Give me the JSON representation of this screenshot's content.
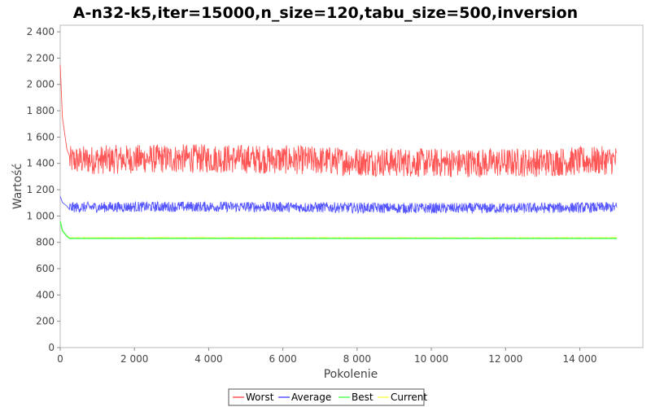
{
  "chart_data": {
    "type": "line",
    "title": "A-n32-k5,iter=15000,n_size=120,tabu_size=500,inversion",
    "xlabel": "Pokolenie",
    "ylabel": "Wartość",
    "xlim": [
      0,
      15700
    ],
    "ylim": [
      0,
      2450
    ],
    "x_ticks": [
      {
        "value": 0,
        "label": "0"
      },
      {
        "value": 2000,
        "label": "2 000"
      },
      {
        "value": 4000,
        "label": "4 000"
      },
      {
        "value": 6000,
        "label": "6 000"
      },
      {
        "value": 8000,
        "label": "8 000"
      },
      {
        "value": 10000,
        "label": "10 000"
      },
      {
        "value": 12000,
        "label": "12 000"
      },
      {
        "value": 14000,
        "label": "14 000"
      }
    ],
    "y_ticks": [
      {
        "value": 0,
        "label": "0"
      },
      {
        "value": 200,
        "label": "200"
      },
      {
        "value": 400,
        "label": "400"
      },
      {
        "value": 600,
        "label": "600"
      },
      {
        "value": 800,
        "label": "800"
      },
      {
        "value": 1000,
        "label": "1 000"
      },
      {
        "value": 1200,
        "label": "1 200"
      },
      {
        "value": 1400,
        "label": "1 400"
      },
      {
        "value": 1600,
        "label": "1 600"
      },
      {
        "value": 1800,
        "label": "1 800"
      },
      {
        "value": 2000,
        "label": "2 000"
      },
      {
        "value": 2200,
        "label": "2 200"
      },
      {
        "value": 2400,
        "label": "2 400"
      }
    ],
    "x_max": 15000,
    "series": [
      {
        "name": "Worst",
        "color": "#ff5555",
        "start": 2150,
        "mean": 1420,
        "noise": 110
      },
      {
        "name": "Average",
        "color": "#5555ff",
        "start": 1150,
        "mean": 1065,
        "noise": 40
      },
      {
        "name": "Best",
        "color": "#55ff55",
        "start": 960,
        "mean": 830,
        "noise": 0
      },
      {
        "name": "Current",
        "color": "#ffff55",
        "start": 960,
        "mean": 835,
        "noise": 4
      }
    ],
    "legend_position": "bottom-center",
    "grid": false
  }
}
